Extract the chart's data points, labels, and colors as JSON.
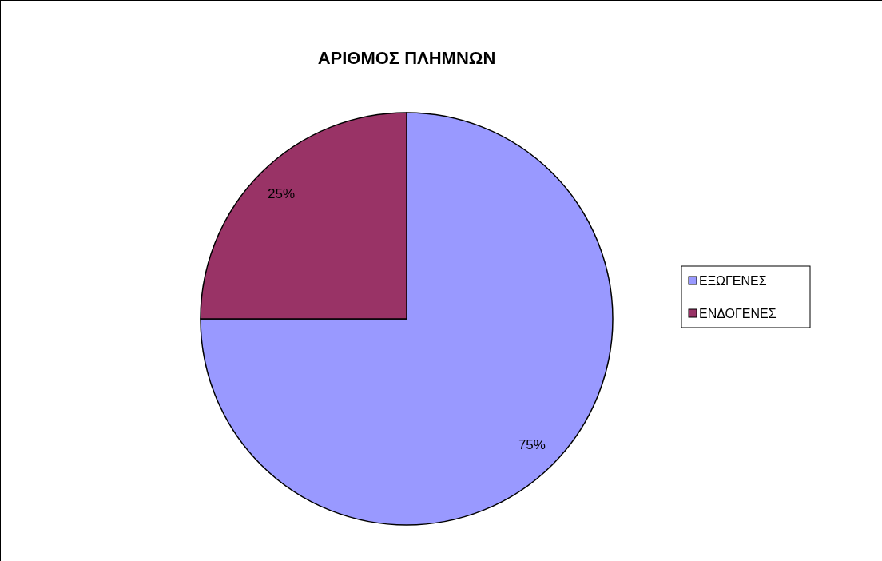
{
  "chart_data": {
    "type": "pie",
    "title": "ΑΡΙΘΜΟΣ ΠΛΗΜΝΩΝ",
    "categories": [
      "ΕΞΩΓΕΝΕΣ",
      "ΕΝΔΟΓΕΝΕΣ"
    ],
    "values": [
      75,
      25
    ],
    "colors": [
      "#9999ff",
      "#993366"
    ],
    "value_labels": [
      "75%",
      "25%"
    ],
    "legend": "right"
  }
}
